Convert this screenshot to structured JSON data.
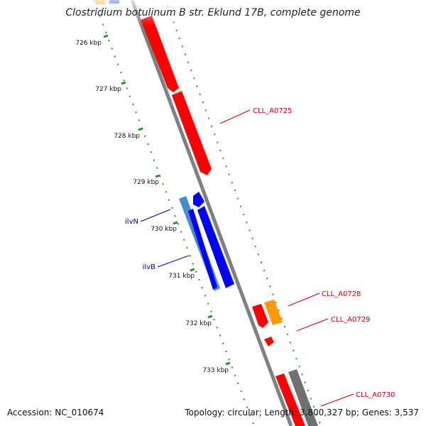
{
  "title": "Clostridium botulinum B str. Eklund 17B, complete genome",
  "accession_label": "Accession: NC_010674",
  "topology_label": "Topology: circular; Length: 3,800,327 bp; Genes: 3,537",
  "colors": {
    "backbone": "#808080",
    "forward_gene": "#ff0000",
    "other_gene": "#ff9900",
    "ilv_gene": "#0000ff",
    "ilv_gene_light": "#4a8acb",
    "grey_gene": "#707070",
    "scale": "#2e8b2e",
    "gene_label_red": "#cc0000",
    "gene_label_blue": "#00008b"
  },
  "scale_ticks": [
    {
      "label": "726 kbp"
    },
    {
      "label": "727 kbp"
    },
    {
      "label": "728 kbp"
    },
    {
      "label": "729 kbp"
    },
    {
      "label": "730 kbp"
    },
    {
      "label": "731 kbp"
    },
    {
      "label": "732 kbp"
    },
    {
      "label": "733 kbp"
    }
  ],
  "gene_labels": {
    "cll_a0725": "CLL_A0725",
    "ilvn": "ilvN",
    "ilvb": "ilvB",
    "cll_a0728": "CLL_A0728",
    "cll_a0729": "CLL_A0729",
    "cll_a0730": "CLL_A0730"
  }
}
